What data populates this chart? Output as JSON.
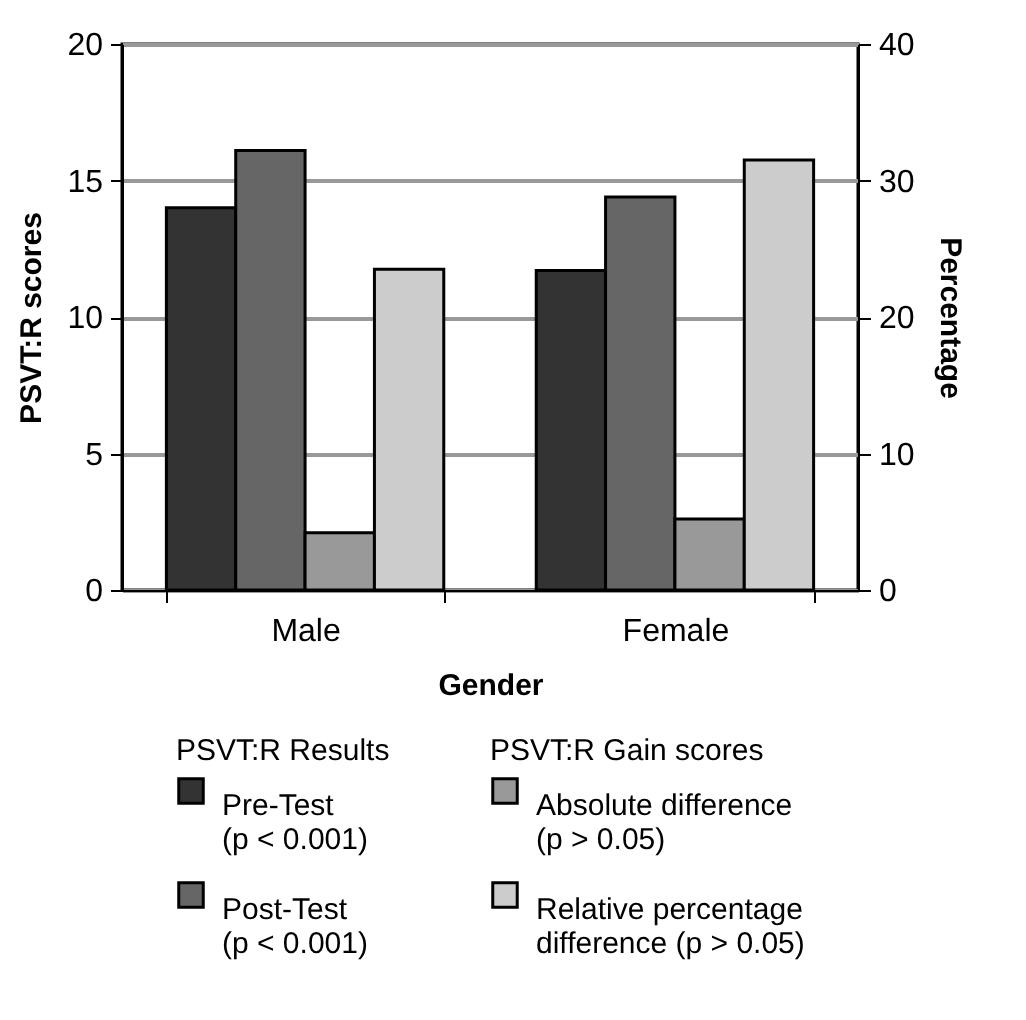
{
  "chart_data": {
    "type": "bar",
    "categories": [
      "Male",
      "Female"
    ],
    "series": [
      {
        "name": "Pre-Test (p < 0.001)",
        "color": "#333333",
        "values": [
          14.0,
          11.7
        ]
      },
      {
        "name": "Post-Test (p < 0.001)",
        "color": "#666666",
        "values": [
          16.1,
          14.4
        ]
      },
      {
        "name": "Absolute difference (p > 0.05)",
        "color": "#999999",
        "values": [
          2.1,
          2.6
        ]
      },
      {
        "name": "Relative percentage difference (p > 0.05)",
        "color": "#cccccc",
        "values": [
          23.5,
          31.5
        ],
        "axis": "y2"
      }
    ],
    "xlabel": "Gender",
    "ylabel": "PSVT:R scores",
    "y2label": "Percentage",
    "legend_title": [
      "PSVT:R Results",
      "PSVT:R Gain scores"
    ],
    "ylim": [
      0,
      20
    ],
    "yticks": [
      0,
      5,
      10,
      15,
      20
    ],
    "y2lim": [
      0,
      40
    ],
    "y2ticks": [
      0,
      10,
      20,
      30,
      40
    ],
    "grid": "y",
    "legend": "bottom"
  }
}
